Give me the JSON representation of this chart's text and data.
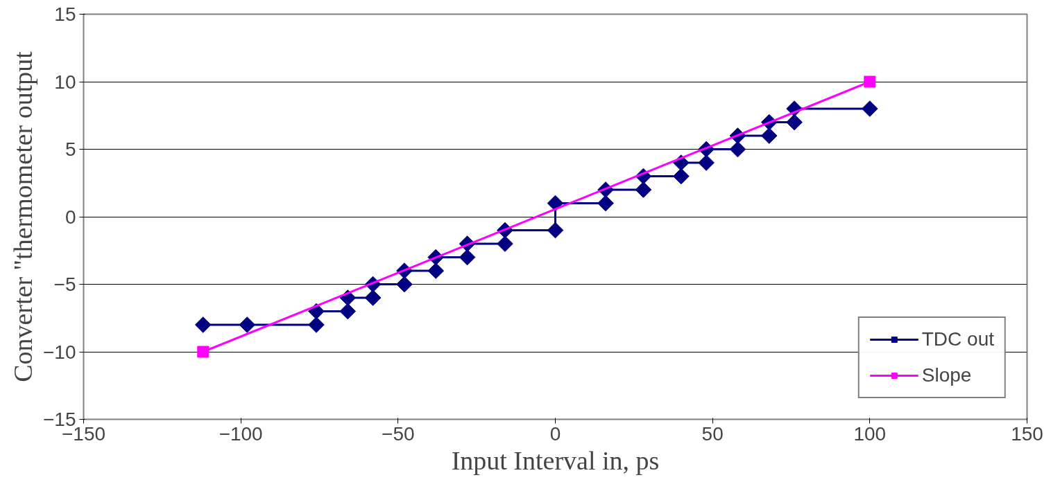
{
  "chart_data": {
    "type": "line",
    "xlabel": "Input Interval in, ps",
    "ylabel": "Converter \"thermometer output",
    "xlim": [
      -150,
      150
    ],
    "xticks": [
      -150,
      -100,
      -50,
      0,
      50,
      100,
      150
    ],
    "ylim": [
      -15,
      15
    ],
    "yticks": [
      -15,
      -10,
      -5,
      0,
      5,
      10,
      15
    ],
    "grid": "y",
    "legend": "bottom right",
    "series": [
      {
        "name": "TDC out",
        "color": "#000080",
        "marker": "diamond",
        "x": [
          -112,
          -98,
          -76,
          -76,
          -66,
          -66,
          -58,
          -58,
          -48,
          -48,
          -38,
          -38,
          -28,
          -28,
          -16,
          -16,
          0,
          0,
          16,
          16,
          28,
          28,
          40,
          40,
          48,
          48,
          58,
          58,
          68,
          68,
          76,
          76,
          100
        ],
        "values": [
          -8,
          -8,
          -8,
          -7,
          -7,
          -6,
          -6,
          -5,
          -5,
          -4,
          -4,
          -3,
          -3,
          -2,
          -2,
          -1,
          -1,
          1,
          1,
          2,
          2,
          3,
          3,
          4,
          4,
          5,
          5,
          6,
          6,
          7,
          7,
          8,
          8
        ]
      },
      {
        "name": "Slope",
        "color": "#ff00ff",
        "marker": "square",
        "x": [
          -112,
          100
        ],
        "values": [
          -10,
          10
        ]
      }
    ]
  }
}
